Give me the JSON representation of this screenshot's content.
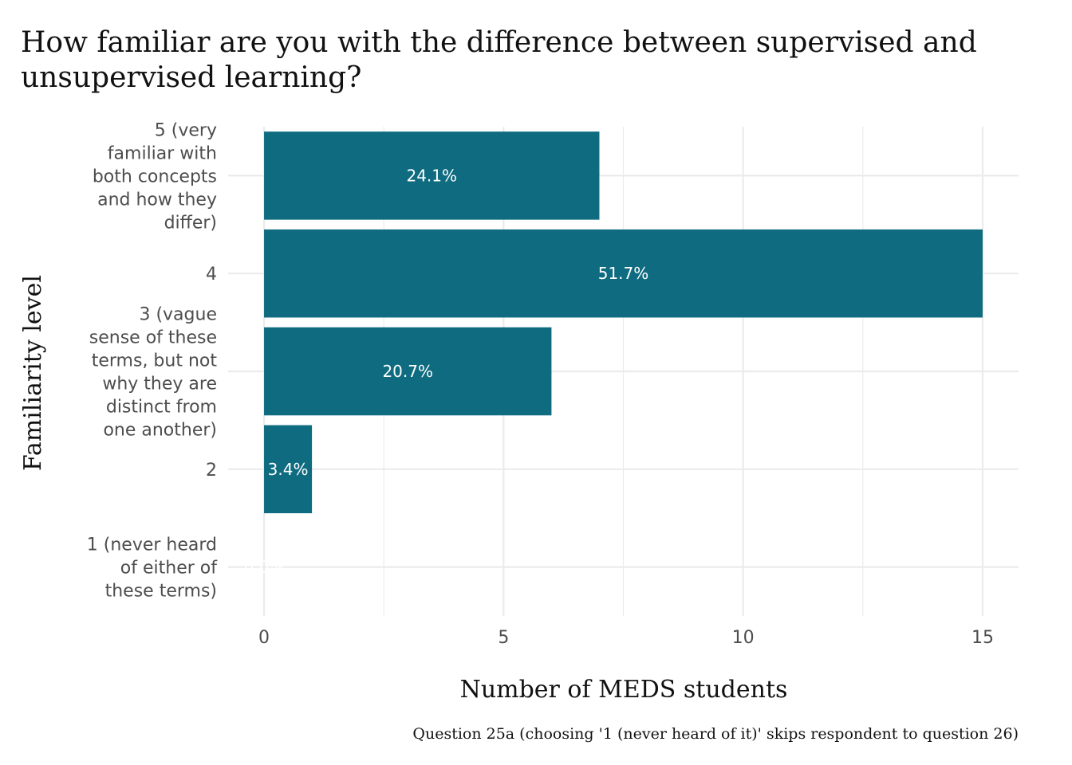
{
  "chart_data": {
    "type": "bar",
    "orientation": "horizontal",
    "title": "How familiar are you with the difference between supervised and unsupervised learning?",
    "xlabel": "Number of MEDS students",
    "ylabel": "Familiarity level",
    "caption": "Question 25a (choosing '1 (never heard of it)' skips respondent to question 26)",
    "categories": [
      [
        "5 (very",
        "familiar with",
        "both concepts",
        "and how they",
        "differ)"
      ],
      [
        "4"
      ],
      [
        "3 (vague",
        "sense of these",
        "terms, but not",
        "why they are",
        "distinct from",
        "one another)"
      ],
      [
        "2"
      ],
      [
        "1 (never heard",
        "of either of",
        "these terms)"
      ]
    ],
    "values": [
      7,
      15,
      6,
      1,
      0
    ],
    "labels": [
      "24.1%",
      "51.7%",
      "20.7%",
      "3.4%",
      "0.0%"
    ],
    "xticks": [
      "0",
      "5",
      "10",
      "15"
    ],
    "xtick_values": [
      0,
      5,
      10,
      15
    ],
    "xlim": [
      -0.75,
      15.75
    ],
    "grid": true,
    "bar_color": "#0f6b80",
    "grid_color": "#ebebeb"
  }
}
